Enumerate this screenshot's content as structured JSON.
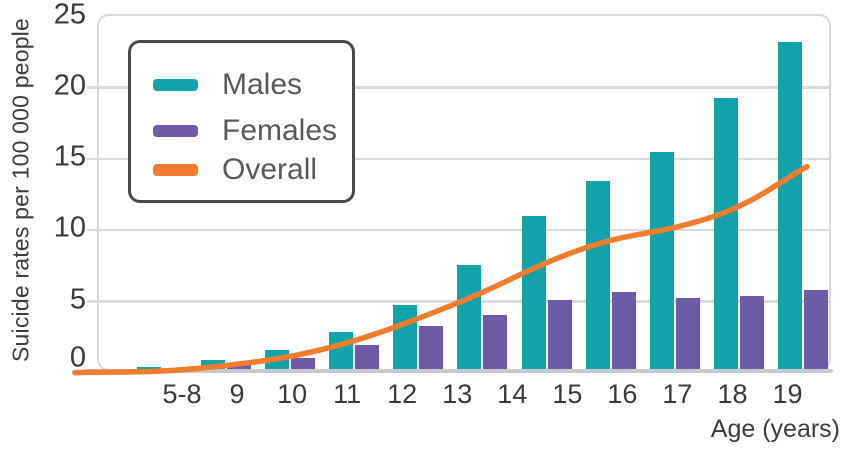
{
  "chart_data": {
    "type": "bar",
    "subtype": "grouped-bars-with-line-overlay",
    "title": "",
    "xlabel": "Age (years)",
    "ylabel": "Suicide rates per 100 000 people",
    "categories": [
      "5-8",
      "9",
      "10",
      "11",
      "12",
      "13",
      "14",
      "15",
      "16",
      "17",
      "18",
      "19"
    ],
    "series": [
      {
        "name": "Males",
        "type": "bar",
        "color": "#12a2ab",
        "values": [
          0.05,
          0.15,
          0.65,
          1.35,
          2.6,
          4.5,
          7.3,
          10.7,
          13.2,
          15.2,
          19.0,
          22.9
        ]
      },
      {
        "name": "Females",
        "type": "bar",
        "color": "#6f5aa7",
        "values": [
          0.03,
          0.08,
          0.4,
          0.8,
          1.7,
          3.0,
          3.8,
          4.8,
          5.4,
          5.0,
          5.1,
          5.5
        ]
      },
      {
        "name": "Overall",
        "type": "line",
        "color": "#f07d2e",
        "values": [
          0.05,
          0.1,
          0.5,
          1.1,
          2.2,
          3.8,
          5.6,
          7.8,
          9.4,
          10.1,
          11.5,
          14.3
        ]
      }
    ],
    "ylim": [
      0,
      25
    ],
    "yticks": [
      25,
      20,
      15,
      10,
      5,
      0
    ],
    "grid": "horizontal",
    "legend_position": "top-left",
    "colors": {
      "males": "#12a2ab",
      "females": "#6f5aa7",
      "overall": "#f07d2e",
      "gridline": "#d9d9df",
      "axis_baseline": "#c8c8d0",
      "plot_border": "#d6d6dc",
      "tick_text": "#3a3a3a",
      "legend_text": "#58595b",
      "legend_border": "#4a4a4a"
    }
  }
}
